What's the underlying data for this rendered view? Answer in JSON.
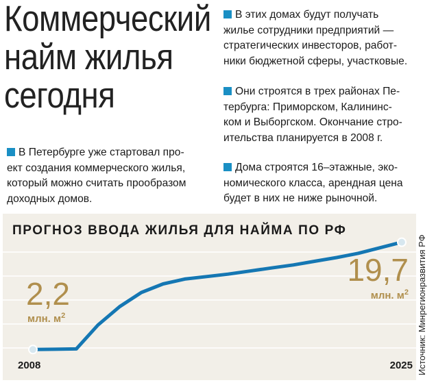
{
  "headline": [
    "Коммерческий",
    "найм жилья",
    "сегодня"
  ],
  "intro_lines": [
    "В Петербурге уже стартовал про-",
    "ект создания коммерческого жилья,",
    "который можно считать прообразом",
    "доходных домов."
  ],
  "bullets": [
    [
      "В этих домах будут получать",
      "жилье сотрудники предприятий —",
      "стратегических инвесторов, работ-",
      "ники бюджетной сферы, участковые."
    ],
    [
      "Они строятся в трех районах Пе-",
      "тербурга: Приморском, Калининс-",
      "ком и Выборгском. Окончание стро-",
      "ительства планируется в 2008 г."
    ],
    [
      "Дома строятся 16–этажные, эко-",
      "номического класса, арендная цена",
      "будет в них не ниже рыночной."
    ]
  ],
  "colors": {
    "accent": "#1a8fc4",
    "line": "#1577b3",
    "value": "#b08f4d",
    "chart_bg": "#f2efe8",
    "grid": "#ffffff"
  },
  "source": "Источник: Минрегионразвития РФ",
  "chart_data": {
    "type": "line",
    "title": "ПРОГНОЗ ВВОДА ЖИЛЬЯ ДЛЯ НАЙМА ПО РФ",
    "x": [
      2008,
      2009,
      2010,
      2011,
      2012,
      2013,
      2014,
      2015,
      2016,
      2017,
      2018,
      2019,
      2020,
      2021,
      2022,
      2023,
      2024,
      2025
    ],
    "values": [
      2.2,
      2.25,
      2.3,
      6.2,
      9.2,
      11.5,
      12.9,
      13.7,
      14.1,
      14.5,
      15.0,
      15.5,
      16.0,
      16.6,
      17.2,
      17.9,
      18.8,
      19.7
    ],
    "xlim": [
      2008,
      2025
    ],
    "ylim": [
      0,
      21
    ],
    "x_tick_labels": [
      "2008",
      "2025"
    ],
    "grid": true,
    "start_label": {
      "value": "2,2",
      "unit": "млн. м",
      "sup": "2"
    },
    "end_label": {
      "value": "19,7",
      "unit": "млн. м",
      "sup": "2"
    }
  }
}
